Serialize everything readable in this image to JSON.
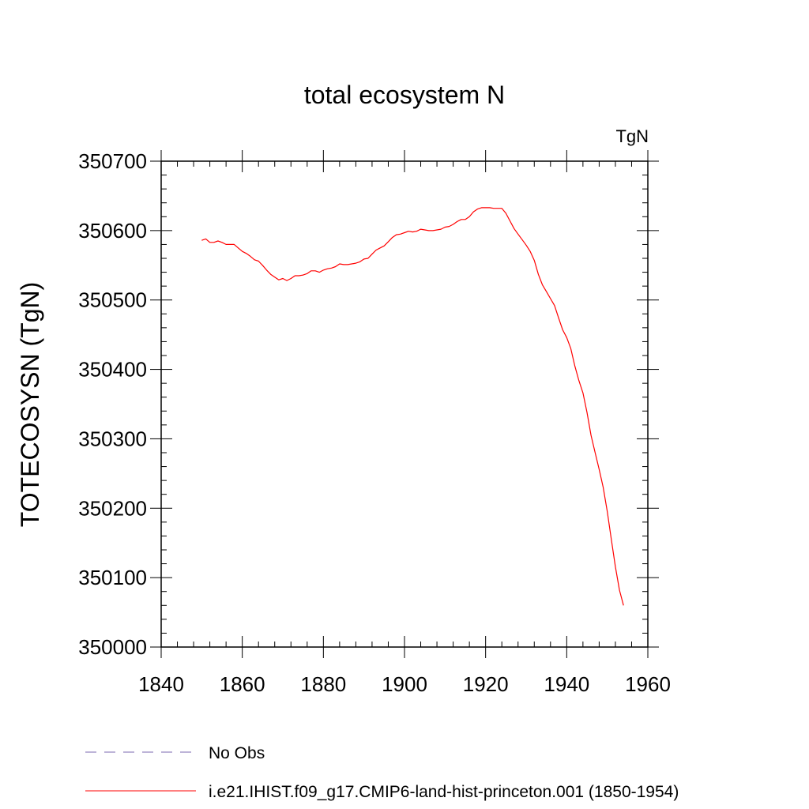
{
  "chart_data": {
    "type": "line",
    "title": "total ecosystem N",
    "units": "TgN",
    "xlabel": "",
    "ylabel": "TOTECOSYSN  (TgN)",
    "xlim": [
      1840,
      1960
    ],
    "ylim": [
      350000,
      350700
    ],
    "xticks": [
      1840,
      1860,
      1880,
      1900,
      1920,
      1940,
      1960
    ],
    "yticks": [
      350000,
      350100,
      350200,
      350300,
      350400,
      350500,
      350600,
      350700
    ],
    "x_minor_step": 4,
    "y_minor_step": 20,
    "grid": false,
    "legend_position": "bottom",
    "series": [
      {
        "name": "No Obs",
        "color": "#7b68b0",
        "dash": "dashed",
        "x": [],
        "y": []
      },
      {
        "name": "i.e21.IHIST.f09_g17.CMIP6-land-hist-princeton.001 (1850-1954)",
        "color": "#ff0000",
        "dash": "solid",
        "x": [
          1850,
          1851,
          1852,
          1853,
          1854,
          1855,
          1856,
          1857,
          1858,
          1859,
          1860,
          1861,
          1862,
          1863,
          1864,
          1865,
          1866,
          1867,
          1868,
          1869,
          1870,
          1871,
          1872,
          1873,
          1874,
          1875,
          1876,
          1877,
          1878,
          1879,
          1880,
          1881,
          1882,
          1883,
          1884,
          1885,
          1886,
          1887,
          1888,
          1889,
          1890,
          1891,
          1892,
          1893,
          1894,
          1895,
          1896,
          1897,
          1898,
          1899,
          1900,
          1901,
          1902,
          1903,
          1904,
          1905,
          1906,
          1907,
          1908,
          1909,
          1910,
          1911,
          1912,
          1913,
          1914,
          1915,
          1916,
          1917,
          1918,
          1919,
          1920,
          1921,
          1922,
          1923,
          1924,
          1925,
          1926,
          1927,
          1928,
          1929,
          1930,
          1931,
          1932,
          1933,
          1934,
          1935,
          1936,
          1937,
          1938,
          1939,
          1940,
          1941,
          1942,
          1943,
          1944,
          1945,
          1946,
          1947,
          1948,
          1949,
          1950,
          1951,
          1952,
          1953,
          1954
        ],
        "y": [
          350586,
          350588,
          350583,
          350583,
          350585,
          350583,
          350580,
          350580,
          350580,
          350575,
          350570,
          350567,
          350563,
          350558,
          350556,
          350550,
          350543,
          350537,
          350533,
          350529,
          350531,
          350528,
          350531,
          350535,
          350535,
          350536,
          350538,
          350542,
          350542,
          350540,
          350543,
          350545,
          350546,
          350548,
          350552,
          350551,
          350551,
          350552,
          350553,
          350555,
          350559,
          350560,
          350566,
          350572,
          350575,
          350578,
          350584,
          350590,
          350594,
          350595,
          350597,
          350599,
          350598,
          350599,
          350602,
          350601,
          350600,
          350600,
          350601,
          350602,
          350605,
          350606,
          350609,
          350613,
          350616,
          350616,
          350620,
          350627,
          350631,
          350633,
          350633,
          350633,
          350632,
          350632,
          350632,
          350625,
          350614,
          350603,
          350595,
          350587,
          350579,
          350570,
          350557,
          350537,
          350522,
          350512,
          350502,
          350492,
          350474,
          350457,
          350446,
          350430,
          350405,
          350384,
          350366,
          350338,
          350305,
          350280,
          350256,
          350230,
          350195,
          350155,
          350116,
          350082,
          350060
        ]
      }
    ]
  }
}
